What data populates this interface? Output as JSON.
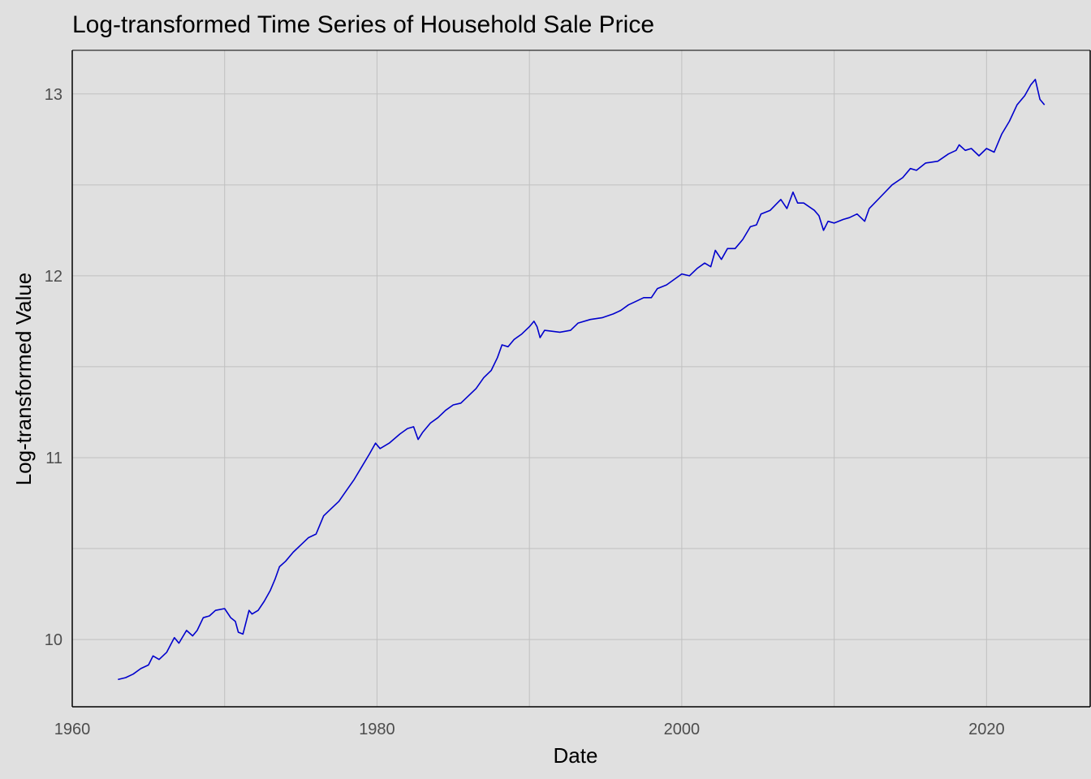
{
  "chart_data": {
    "type": "line",
    "title": "Log-transformed Time Series of Household Sale Price",
    "xlabel": "Date",
    "ylabel": "Log-transformed Value",
    "xlim": [
      1960,
      2026.8
    ],
    "ylim": [
      9.63,
      13.24
    ],
    "x_ticks": [
      1960,
      1980,
      2000,
      2020
    ],
    "x_tick_labels": [
      "1960",
      "1980",
      "2000",
      "2020"
    ],
    "y_ticks": [
      10,
      11,
      12,
      13
    ],
    "y_tick_labels": [
      "10",
      "11",
      "12",
      "13"
    ],
    "grid": true,
    "legend": "none",
    "series": [
      {
        "color": "#0000cc",
        "points": [
          [
            1963.0,
            9.78
          ],
          [
            1963.5,
            9.79
          ],
          [
            1964.0,
            9.81
          ],
          [
            1964.5,
            9.84
          ],
          [
            1965.0,
            9.86
          ],
          [
            1965.3,
            9.91
          ],
          [
            1965.7,
            9.89
          ],
          [
            1966.2,
            9.93
          ],
          [
            1966.7,
            10.01
          ],
          [
            1967.0,
            9.98
          ],
          [
            1967.5,
            10.05
          ],
          [
            1967.9,
            10.02
          ],
          [
            1968.2,
            10.05
          ],
          [
            1968.6,
            10.12
          ],
          [
            1969.0,
            10.13
          ],
          [
            1969.4,
            10.16
          ],
          [
            1970.0,
            10.17
          ],
          [
            1970.4,
            10.12
          ],
          [
            1970.7,
            10.1
          ],
          [
            1970.9,
            10.04
          ],
          [
            1971.2,
            10.03
          ],
          [
            1971.6,
            10.16
          ],
          [
            1971.8,
            10.14
          ],
          [
            1972.2,
            10.16
          ],
          [
            1972.6,
            10.21
          ],
          [
            1973.0,
            10.27
          ],
          [
            1973.3,
            10.33
          ],
          [
            1973.6,
            10.4
          ],
          [
            1974.0,
            10.43
          ],
          [
            1974.5,
            10.48
          ],
          [
            1975.0,
            10.52
          ],
          [
            1975.5,
            10.56
          ],
          [
            1976.0,
            10.58
          ],
          [
            1976.5,
            10.68
          ],
          [
            1977.0,
            10.72
          ],
          [
            1977.5,
            10.76
          ],
          [
            1978.0,
            10.82
          ],
          [
            1978.5,
            10.88
          ],
          [
            1979.0,
            10.95
          ],
          [
            1979.5,
            11.02
          ],
          [
            1979.9,
            11.08
          ],
          [
            1980.2,
            11.05
          ],
          [
            1980.8,
            11.08
          ],
          [
            1981.5,
            11.13
          ],
          [
            1982.0,
            11.16
          ],
          [
            1982.4,
            11.17
          ],
          [
            1982.7,
            11.1
          ],
          [
            1983.0,
            11.14
          ],
          [
            1983.5,
            11.19
          ],
          [
            1984.0,
            11.22
          ],
          [
            1984.5,
            11.26
          ],
          [
            1985.0,
            11.29
          ],
          [
            1985.5,
            11.3
          ],
          [
            1986.0,
            11.34
          ],
          [
            1986.5,
            11.38
          ],
          [
            1987.0,
            11.44
          ],
          [
            1987.5,
            11.48
          ],
          [
            1987.9,
            11.55
          ],
          [
            1988.2,
            11.62
          ],
          [
            1988.6,
            11.61
          ],
          [
            1989.0,
            11.65
          ],
          [
            1989.5,
            11.68
          ],
          [
            1990.0,
            11.72
          ],
          [
            1990.3,
            11.75
          ],
          [
            1990.5,
            11.72
          ],
          [
            1990.7,
            11.66
          ],
          [
            1991.0,
            11.7
          ],
          [
            1992.0,
            11.69
          ],
          [
            1992.7,
            11.7
          ],
          [
            1993.2,
            11.74
          ],
          [
            1994.0,
            11.76
          ],
          [
            1994.8,
            11.77
          ],
          [
            1995.5,
            11.79
          ],
          [
            1996.0,
            11.81
          ],
          [
            1996.5,
            11.84
          ],
          [
            1997.0,
            11.86
          ],
          [
            1997.5,
            11.88
          ],
          [
            1998.0,
            11.88
          ],
          [
            1998.4,
            11.93
          ],
          [
            1999.0,
            11.95
          ],
          [
            1999.5,
            11.98
          ],
          [
            2000.0,
            12.01
          ],
          [
            2000.5,
            12.0
          ],
          [
            2001.0,
            12.04
          ],
          [
            2001.5,
            12.07
          ],
          [
            2001.9,
            12.05
          ],
          [
            2002.2,
            12.14
          ],
          [
            2002.6,
            12.09
          ],
          [
            2003.0,
            12.15
          ],
          [
            2003.5,
            12.15
          ],
          [
            2004.0,
            12.2
          ],
          [
            2004.5,
            12.27
          ],
          [
            2004.9,
            12.28
          ],
          [
            2005.2,
            12.34
          ],
          [
            2005.8,
            12.36
          ],
          [
            2006.5,
            12.42
          ],
          [
            2006.9,
            12.37
          ],
          [
            2007.3,
            12.46
          ],
          [
            2007.6,
            12.4
          ],
          [
            2008.0,
            12.4
          ],
          [
            2008.7,
            12.36
          ],
          [
            2009.0,
            12.33
          ],
          [
            2009.3,
            12.25
          ],
          [
            2009.6,
            12.3
          ],
          [
            2010.0,
            12.29
          ],
          [
            2010.6,
            12.31
          ],
          [
            2011.0,
            12.32
          ],
          [
            2011.5,
            12.34
          ],
          [
            2012.0,
            12.3
          ],
          [
            2012.3,
            12.37
          ],
          [
            2013.0,
            12.43
          ],
          [
            2013.8,
            12.5
          ],
          [
            2014.5,
            12.54
          ],
          [
            2015.0,
            12.59
          ],
          [
            2015.4,
            12.58
          ],
          [
            2016.0,
            12.62
          ],
          [
            2016.8,
            12.63
          ],
          [
            2017.5,
            12.67
          ],
          [
            2018.0,
            12.69
          ],
          [
            2018.2,
            12.72
          ],
          [
            2018.6,
            12.69
          ],
          [
            2019.0,
            12.7
          ],
          [
            2019.5,
            12.66
          ],
          [
            2020.0,
            12.7
          ],
          [
            2020.5,
            12.68
          ],
          [
            2021.0,
            12.78
          ],
          [
            2021.5,
            12.85
          ],
          [
            2022.0,
            12.94
          ],
          [
            2022.5,
            12.99
          ],
          [
            2022.9,
            13.05
          ],
          [
            2023.2,
            13.08
          ],
          [
            2023.5,
            12.97
          ],
          [
            2023.8,
            12.94
          ]
        ]
      }
    ]
  }
}
